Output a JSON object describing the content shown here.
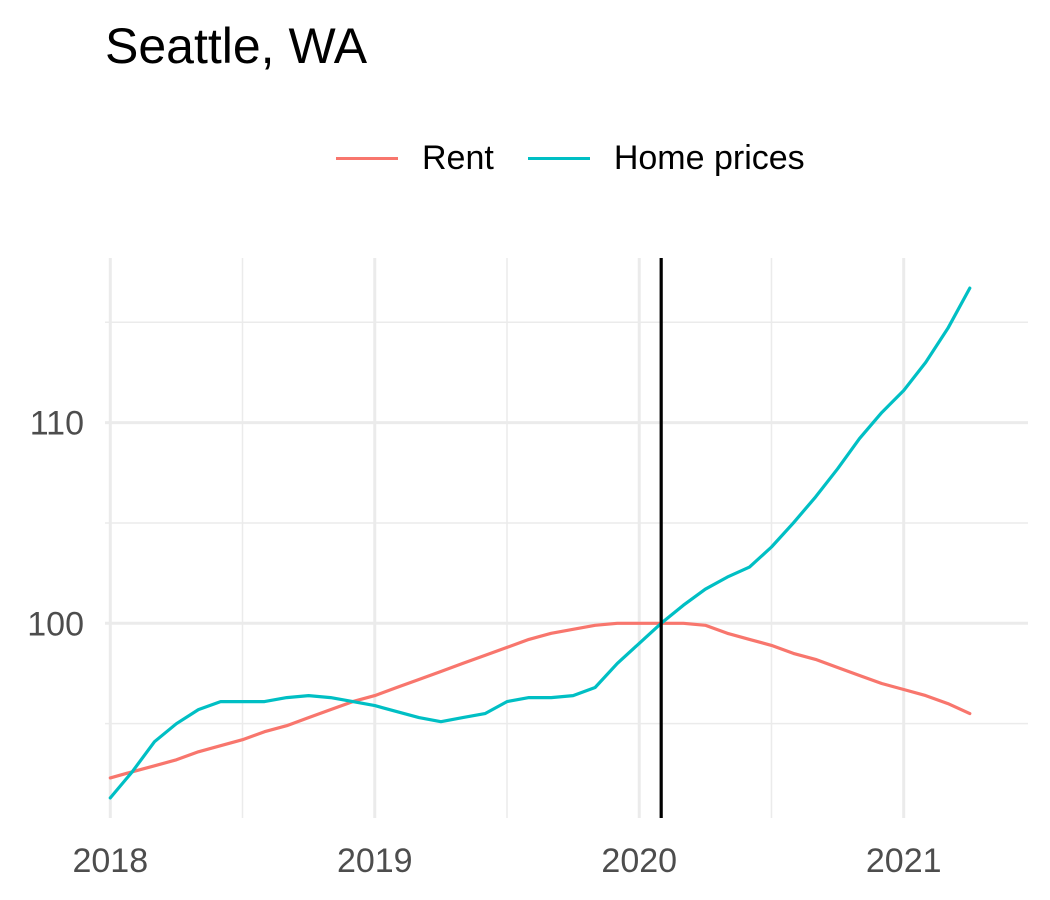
{
  "chart_data": {
    "type": "line",
    "title": "Seattle, WA",
    "xlabel": "",
    "ylabel": "",
    "x_ticks": [
      2018,
      2019,
      2020,
      2021
    ],
    "x_tick_labels": [
      "2018",
      "2019",
      "2020",
      "2021"
    ],
    "y_ticks": [
      100,
      110
    ],
    "y_tick_labels": [
      "100",
      "110"
    ],
    "xlim": [
      2017.98,
      2021.47
    ],
    "ylim": [
      90.3,
      118.2
    ],
    "grid": true,
    "legend_position": "top",
    "reference_line": {
      "x": 2020.083,
      "color": "#000000"
    },
    "series": [
      {
        "name": "Rent",
        "color": "#F8766D",
        "x": [
          2018.0,
          2018.083,
          2018.167,
          2018.25,
          2018.333,
          2018.417,
          2018.5,
          2018.583,
          2018.667,
          2018.75,
          2018.833,
          2018.917,
          2019.0,
          2019.083,
          2019.167,
          2019.25,
          2019.333,
          2019.417,
          2019.5,
          2019.583,
          2019.667,
          2019.75,
          2019.833,
          2019.917,
          2020.0,
          2020.083,
          2020.167,
          2020.25,
          2020.333,
          2020.417,
          2020.5,
          2020.583,
          2020.667,
          2020.75,
          2020.833,
          2020.917,
          2021.0,
          2021.083,
          2021.167,
          2021.25
        ],
        "values": [
          92.3,
          92.6,
          92.9,
          93.2,
          93.6,
          93.9,
          94.2,
          94.6,
          94.9,
          95.3,
          95.7,
          96.1,
          96.4,
          96.8,
          97.2,
          97.6,
          98.0,
          98.4,
          98.8,
          99.2,
          99.5,
          99.7,
          99.9,
          100.0,
          100.0,
          100.0,
          100.0,
          99.9,
          99.5,
          99.2,
          98.9,
          98.5,
          98.2,
          97.8,
          97.4,
          97.0,
          96.7,
          96.4,
          96.0,
          95.5
        ]
      },
      {
        "name": "Home prices",
        "color": "#00BFC4",
        "x": [
          2018.0,
          2018.083,
          2018.167,
          2018.25,
          2018.333,
          2018.417,
          2018.5,
          2018.583,
          2018.667,
          2018.75,
          2018.833,
          2018.917,
          2019.0,
          2019.083,
          2019.167,
          2019.25,
          2019.333,
          2019.417,
          2019.5,
          2019.583,
          2019.667,
          2019.75,
          2019.833,
          2019.917,
          2020.0,
          2020.083,
          2020.167,
          2020.25,
          2020.333,
          2020.417,
          2020.5,
          2020.583,
          2020.667,
          2020.75,
          2020.833,
          2020.917,
          2021.0,
          2021.083,
          2021.167,
          2021.25
        ],
        "values": [
          91.3,
          92.6,
          94.1,
          95.0,
          95.7,
          96.1,
          96.1,
          96.1,
          96.3,
          96.4,
          96.3,
          96.1,
          95.9,
          95.6,
          95.3,
          95.1,
          95.3,
          95.5,
          96.1,
          96.3,
          96.3,
          96.4,
          96.8,
          98.0,
          99.0,
          100.0,
          100.9,
          101.7,
          102.3,
          102.8,
          103.8,
          105.0,
          106.3,
          107.7,
          109.2,
          110.5,
          111.6,
          113.0,
          114.7,
          116.7
        ]
      }
    ]
  }
}
